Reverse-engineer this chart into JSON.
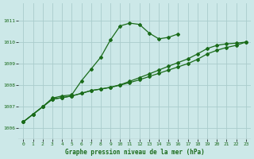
{
  "title": "Graphe pression niveau de la mer (hPa)",
  "background_color": "#cce8e8",
  "grid_color": "#aacccc",
  "line_color": "#1a6b1a",
  "xlim": [
    -0.5,
    23.5
  ],
  "ylim": [
    1005.5,
    1011.8
  ],
  "yticks": [
    1006,
    1007,
    1008,
    1009,
    1010,
    1011
  ],
  "xticks": [
    0,
    1,
    2,
    3,
    4,
    5,
    6,
    7,
    8,
    9,
    10,
    11,
    12,
    13,
    14,
    15,
    16,
    17,
    18,
    19,
    20,
    21,
    22,
    23
  ],
  "series1": [
    1006.3,
    1006.65,
    1007.0,
    1007.4,
    1007.5,
    1007.55,
    1008.2,
    1008.75,
    1009.3,
    1010.1,
    1010.75,
    1010.88,
    1010.82,
    1010.42,
    1010.15,
    1010.22,
    1010.38,
    null,
    null,
    null,
    null,
    null,
    null,
    null
  ],
  "series2": [
    1006.3,
    1006.65,
    1007.0,
    1007.35,
    1007.42,
    1007.5,
    1007.62,
    1007.75,
    1007.82,
    1007.9,
    1008.0,
    1008.12,
    1008.25,
    1008.4,
    1008.55,
    1008.7,
    1008.85,
    1009.0,
    1009.2,
    1009.45,
    1009.62,
    1009.75,
    1009.85,
    1010.0
  ],
  "series3": [
    1006.3,
    1006.65,
    1007.0,
    1007.35,
    1007.42,
    1007.5,
    1007.62,
    1007.75,
    1007.82,
    1007.9,
    1008.02,
    1008.18,
    1008.35,
    1008.52,
    1008.7,
    1008.88,
    1009.05,
    1009.22,
    1009.45,
    1009.7,
    1009.85,
    1009.92,
    1009.95,
    1010.0
  ]
}
